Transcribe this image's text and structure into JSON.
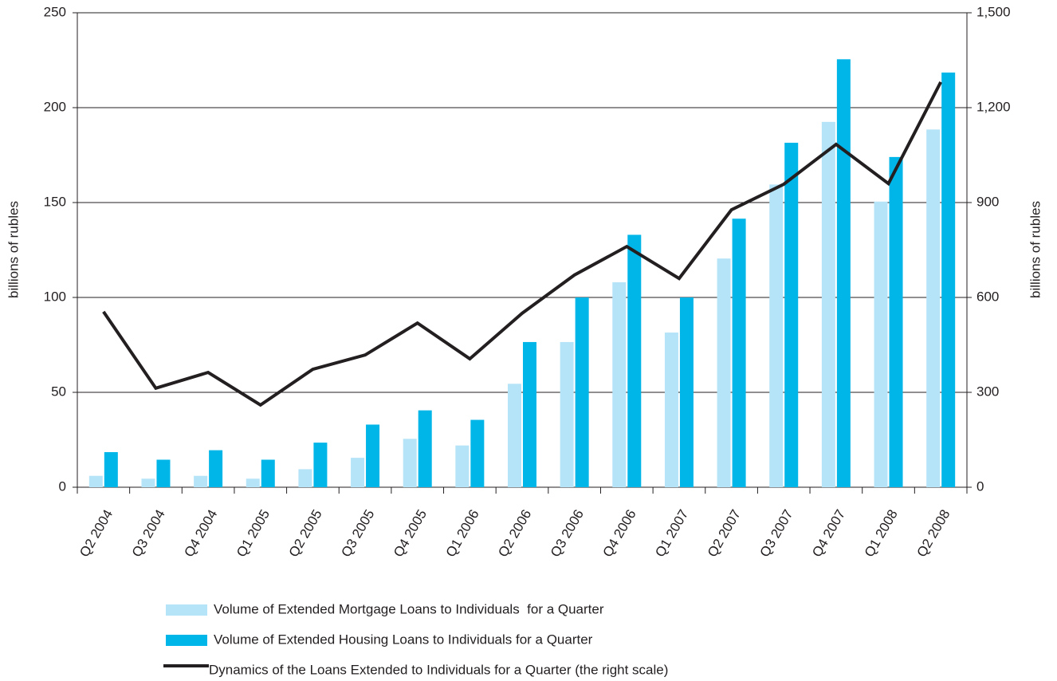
{
  "chart_data": {
    "type": "bar_line",
    "categories": [
      "Q2 2004",
      "Q3 2004",
      "Q4 2004",
      "Q1 2005",
      "Q2 2005",
      "Q3 2005",
      "Q4 2005",
      "Q1 2006",
      "Q2 2006",
      "Q3 2006",
      "Q4 2006",
      "Q1 2007",
      "Q2 2007",
      "Q3 2007",
      "Q4 2007",
      "Q1 2008",
      "Q2 2008"
    ],
    "series": [
      {
        "name": "Volume of Extended Mortgage Loans to Individuals  for a Quarter",
        "type": "bar",
        "color": "#b5e4f8",
        "values": [
          6,
          4.5,
          6,
          4.5,
          9.5,
          15.5,
          25.5,
          22,
          54.5,
          76.5,
          108,
          81.5,
          120.5,
          159.5,
          192.5,
          150.5,
          188.5
        ]
      },
      {
        "name": "Volume of Extended Housing Loans to Individuals for a Quarter",
        "type": "bar",
        "color": "#00b5e8",
        "values": [
          18.5,
          14.5,
          19.5,
          14.5,
          23.5,
          33,
          40.5,
          35.5,
          76.5,
          100,
          133,
          100,
          141.5,
          181.5,
          225.5,
          174,
          218.5
        ]
      },
      {
        "name": "Dynamics of the Loans Extended to Individuals for a Quarter (the right scale)",
        "type": "line",
        "axis": "y2",
        "color": "#231f20",
        "values": [
          555,
          313,
          363,
          260,
          373,
          418,
          519,
          406,
          550,
          671,
          761,
          660,
          877,
          958,
          1084,
          960,
          1281
        ]
      }
    ],
    "ylabel": "billions of rubles",
    "y2label": "billions of rubles",
    "ylim": [
      0,
      250
    ],
    "yticks": [
      0,
      50,
      100,
      150,
      200,
      250
    ],
    "y2lim": [
      0,
      1500
    ],
    "y2ticks": [
      0,
      300,
      600,
      900,
      {
        "value": 1200,
        "label": "1,200"
      },
      {
        "value": 1500,
        "label": "1,500"
      }
    ],
    "grid": true
  }
}
